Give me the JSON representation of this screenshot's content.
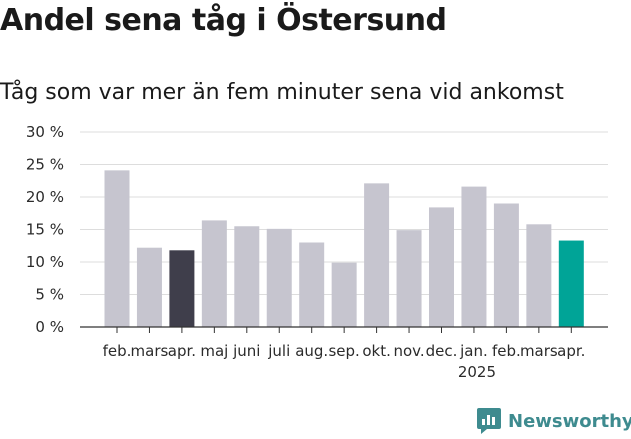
{
  "title": "Andel sena tåg i Östersund",
  "subtitle": "Tåg som var mer än fem minuter sena vid ankomst",
  "brand": {
    "name": "Newsworthy",
    "icon": "chart-logo-icon",
    "color": "#3e8b8f"
  },
  "chart_data": {
    "type": "bar",
    "categories": [
      "feb.",
      "mars",
      "apr.",
      "maj",
      "juni",
      "juli",
      "aug.",
      "sep.",
      "okt.",
      "nov.",
      "dec.",
      "jan.",
      "feb.",
      "mars",
      "apr."
    ],
    "year_label": {
      "text": "2025",
      "category_index": 11
    },
    "values": [
      24.1,
      12.2,
      11.8,
      16.4,
      15.5,
      15.1,
      13.0,
      9.9,
      22.1,
      14.9,
      18.4,
      21.6,
      19.0,
      15.8,
      13.3
    ],
    "ylim": [
      0,
      30
    ],
    "yticks": [
      0,
      5,
      10,
      15,
      20,
      25,
      30
    ],
    "ytick_labels": [
      "0 %",
      "5 %",
      "10 %",
      "15 %",
      "20 %",
      "25 %",
      "30 %"
    ],
    "grid": true,
    "colors": {
      "default": "#c6c5cf",
      "highlight_prior_year": "#3f3e4b",
      "highlight_latest": "#00a497",
      "grid": "#dddddd",
      "axis": "#333333"
    },
    "highlight": {
      "2": "highlight_prior_year",
      "14": "highlight_latest"
    }
  }
}
